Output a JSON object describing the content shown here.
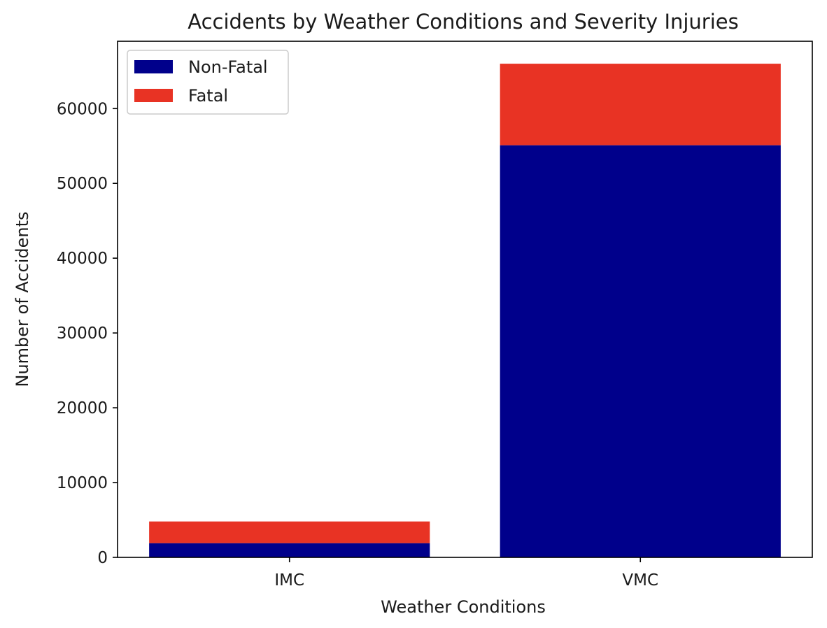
{
  "chart_data": {
    "type": "bar",
    "stacked": true,
    "title": "Accidents by Weather Conditions and Severity Injuries",
    "xlabel": "Weather Conditions",
    "ylabel": "Number of Accidents",
    "categories": [
      "IMC",
      "VMC"
    ],
    "series": [
      {
        "name": "Non-Fatal",
        "values": [
          1900,
          55100
        ],
        "color": "#00008b"
      },
      {
        "name": "Fatal",
        "values": [
          2900,
          10900
        ],
        "color": "#e83324"
      }
    ],
    "ylim": [
      0,
      69000
    ],
    "yticks": [
      0,
      10000,
      20000,
      30000,
      40000,
      50000,
      60000
    ],
    "ytick_labels": [
      "0",
      "10000",
      "20000",
      "30000",
      "40000",
      "50000",
      "60000"
    ],
    "grid": false,
    "legend_position": "top-left"
  }
}
